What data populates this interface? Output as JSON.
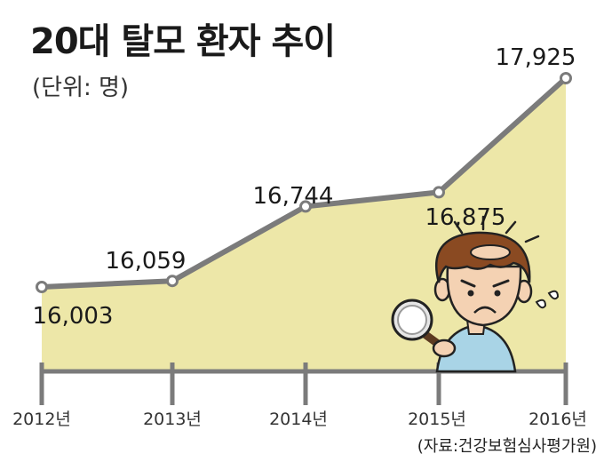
{
  "header": {
    "title": "20대 탈모 환자 추이",
    "unit": "(단위: 명)"
  },
  "source": "(자료:건강보험심사평가원)",
  "chart_data": {
    "type": "area",
    "title": "20대 탈모 환자 추이",
    "subtitle": "(단위: 명)",
    "xlabel": "",
    "ylabel": "",
    "categories": [
      "2012년",
      "2013년",
      "2014년",
      "2015년",
      "2016년"
    ],
    "series": [
      {
        "values": [
          16003,
          16059,
          16744,
          16875,
          17925
        ]
      }
    ],
    "data_labels": [
      "16,003",
      "16,059",
      "16,744",
      "16,875",
      "17,925"
    ],
    "grid": false,
    "legend": "none",
    "colors": {
      "fill": "#ede7a8",
      "line": "#7b7b7b",
      "marker": "#ffffff",
      "axis": "#7b7b7b"
    }
  },
  "illustration": {
    "icon": "worried-man-magnifier-icon"
  }
}
